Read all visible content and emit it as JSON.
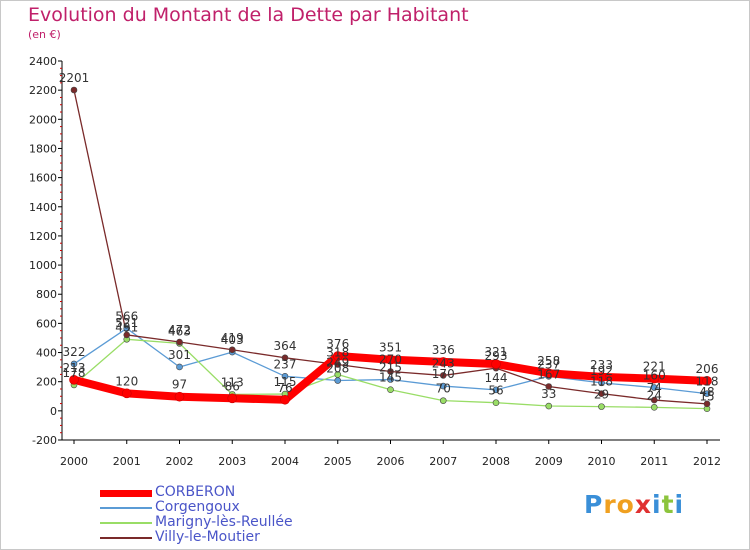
{
  "title": "Evolution du Montant de la Dette par Habitant",
  "subtitle": "(en €)",
  "logo": {
    "text": "Proxiti",
    "letters": [
      {
        "ch": "P",
        "color": "#3a8fd8"
      },
      {
        "ch": "r",
        "color": "#f0a020"
      },
      {
        "ch": "o",
        "color": "#f0a020"
      },
      {
        "ch": "x",
        "color": "#e03030"
      },
      {
        "ch": "i",
        "color": "#3a8fd8"
      },
      {
        "ch": "t",
        "color": "#8cc43c"
      },
      {
        "ch": "i",
        "color": "#3a8fd8"
      }
    ]
  },
  "chart_data": {
    "type": "line",
    "x": [
      "2000",
      "2001",
      "2002",
      "2003",
      "2004",
      "2005",
      "2006",
      "2007",
      "2008",
      "2009",
      "2010",
      "2011",
      "2012"
    ],
    "ylim": [
      -200,
      2400
    ],
    "yticks": [
      "-200",
      "0",
      "200",
      "400",
      "600",
      "800",
      "1000",
      "1200",
      "1400",
      "1600",
      "1800",
      "2000",
      "2200",
      "2400"
    ],
    "grid": false,
    "legend_position": "bottom-left",
    "series": [
      {
        "name": "CORBERON",
        "color": "#ff0000",
        "width": "thick",
        "values": [
          213,
          120,
          97,
          86,
          76,
          376,
          351,
          336,
          321,
          258,
          233,
          221,
          206
        ],
        "labels": [
          "213",
          "120",
          "97",
          "86",
          "76",
          "376",
          "351",
          "336",
          "321",
          "258",
          "233",
          "221",
          "206"
        ]
      },
      {
        "name": "Corgengoux",
        "color": "#5b9bd5",
        "width": "thin",
        "values": [
          322,
          566,
          301,
          403,
          237,
          208,
          215,
          170,
          144,
          237,
          192,
          160,
          118
        ],
        "labels": [
          "322",
          "566",
          "301",
          "403",
          "237",
          "208",
          "215",
          "170",
          "144",
          "237",
          "192",
          "160",
          "118"
        ]
      },
      {
        "name": "Marigny-lès-Reullée",
        "color": "#99dd66",
        "width": "thin",
        "values": [
          178,
          491,
          463,
          113,
          115,
          249,
          145,
          70,
          56,
          33,
          29,
          24,
          15
        ],
        "labels": [
          "178",
          "491",
          "463",
          "113",
          "115",
          "249",
          "145",
          "70",
          "56",
          "33",
          "29",
          "24",
          "15"
        ]
      },
      {
        "name": "Villy-le-Moutier",
        "color": "#7a2a2a",
        "width": "thin",
        "values": [
          2201,
          521,
          472,
          419,
          364,
          318,
          270,
          243,
          293,
          167,
          118,
          74,
          48
        ],
        "labels": [
          "2201",
          "521",
          "472",
          "419",
          "364",
          "318",
          "270",
          "243",
          "293",
          "167",
          "118",
          "74",
          "48"
        ]
      }
    ]
  }
}
